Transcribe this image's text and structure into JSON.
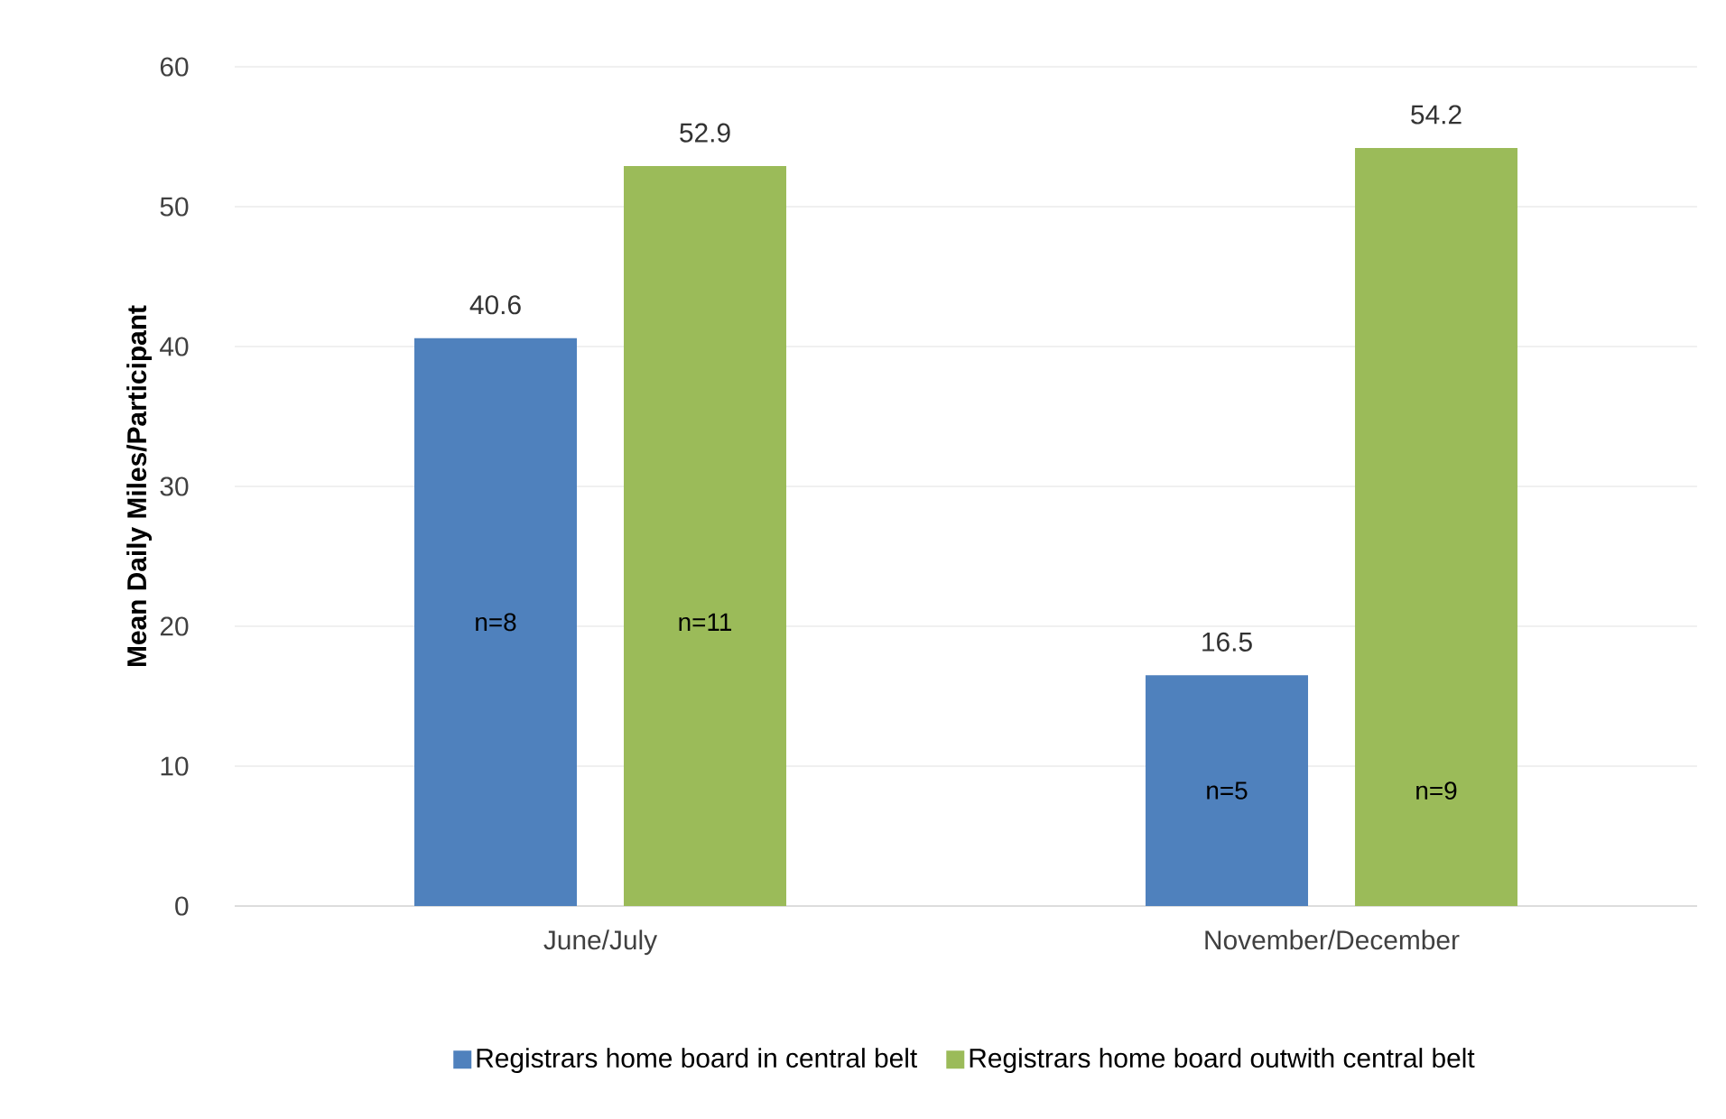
{
  "chart_data": {
    "type": "bar",
    "ylabel": "Mean Daily Miles/Participant",
    "categories": [
      "June/July",
      "November/December"
    ],
    "series": [
      {
        "name": "Registrars home board in central belt",
        "color": "#4f81bd",
        "values": [
          40.6,
          16.5
        ]
      },
      {
        "name": "Registrars home board outwith central belt",
        "color": "#9bbb59",
        "values": [
          52.9,
          54.2
        ]
      }
    ],
    "ylim": [
      0,
      60
    ],
    "yticks": [
      0,
      10,
      20,
      30,
      40,
      50,
      60
    ],
    "grid": "y",
    "legend": "bottom",
    "data_labels": true,
    "annotations": [
      "n=8",
      "n=11",
      "n=5",
      "n=9"
    ]
  }
}
